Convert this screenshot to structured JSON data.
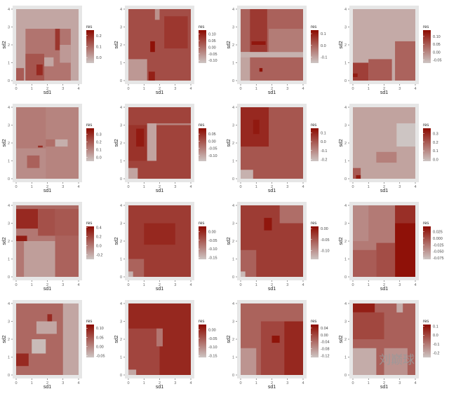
{
  "chart_data": {
    "type": "heatmap",
    "layout": "4x4 grid",
    "xlabel": "sd1",
    "ylabel": "sd2",
    "legend_title": "res",
    "legend_placement": "right",
    "xlim": [
      0,
      4
    ],
    "ylim": [
      0,
      4
    ],
    "xticks": [
      0,
      1,
      2,
      3,
      4
    ],
    "yticks": [
      0,
      1,
      2,
      3,
      4
    ],
    "colors": {
      "low": "#cdc5c3",
      "high": "#8c0a00",
      "panel_bg": "#e6e6e6"
    },
    "panels": [
      {
        "range": [
          -0.05,
          0.25
        ],
        "ticks": [
          "0.2",
          "0.1",
          "0.0"
        ],
        "tickvals": [
          0.2,
          0.1,
          0.0
        ],
        "base": 0.0,
        "blocks": [
          [
            0.6,
            3.5,
            0,
            2.9,
            0.08
          ],
          [
            0,
            0.5,
            0,
            0.7,
            0.12
          ],
          [
            0.6,
            1.8,
            0,
            1.5,
            0.13
          ],
          [
            1.3,
            1.7,
            0.3,
            0.9,
            0.2
          ],
          [
            2.5,
            2.8,
            1.7,
            2.9,
            0.18
          ],
          [
            1.8,
            2.4,
            0.8,
            1.3,
            0.0
          ],
          [
            2.8,
            3.5,
            1.0,
            2.0,
            0.02
          ]
        ]
      },
      {
        "range": [
          -0.12,
          0.13
        ],
        "ticks": [
          "0.10",
          "0.05",
          "0.00",
          "-0.05",
          "-0.10"
        ],
        "tickvals": [
          0.1,
          0.05,
          0,
          -0.05,
          -0.1
        ],
        "base": 0.04,
        "blocks": [
          [
            1.7,
            2.0,
            3.4,
            4,
            -0.05
          ],
          [
            2.3,
            3.8,
            1.8,
            3.6,
            0.07
          ],
          [
            0,
            1.2,
            0,
            1.2,
            -0.06
          ],
          [
            1.4,
            1.7,
            1.6,
            2.2,
            0.12
          ],
          [
            1.3,
            1.7,
            0,
            0.5,
            0.1
          ]
        ]
      },
      {
        "range": [
          -0.15,
          0.13
        ],
        "ticks": [
          "0.1",
          "0.0",
          "-0.1"
        ],
        "tickvals": [
          0.1,
          0,
          -0.1
        ],
        "base": 0.0,
        "blocks": [
          [
            0.6,
            1.7,
            1.6,
            4,
            0.06
          ],
          [
            0.7,
            1.6,
            2.0,
            2.2,
            0.11
          ],
          [
            1.8,
            4,
            1.6,
            2.9,
            -0.04
          ],
          [
            0,
            0.6,
            0,
            1.6,
            -0.1
          ],
          [
            0,
            4,
            1.3,
            1.6,
            -0.12
          ],
          [
            1.2,
            1.4,
            0.5,
            0.7,
            0.12
          ]
        ]
      },
      {
        "range": [
          -0.07,
          0.14
        ],
        "ticks": [
          "0.10",
          "0.05",
          "0.00",
          "-0.05"
        ],
        "tickvals": [
          0.1,
          0.05,
          0,
          -0.05
        ],
        "base": -0.04,
        "blocks": [
          [
            0,
            1.0,
            0,
            1.0,
            0.08
          ],
          [
            1.0,
            2.5,
            0,
            1.2,
            0.05
          ],
          [
            2.7,
            4,
            0,
            2.2,
            0.04
          ],
          [
            0,
            0.3,
            0.2,
            0.4,
            0.12
          ]
        ]
      },
      {
        "range": [
          -0.05,
          0.38
        ],
        "ticks": [
          "0.3",
          "0.2",
          "0.1",
          "0.0"
        ],
        "tickvals": [
          0.3,
          0.2,
          0.1,
          0
        ],
        "base": 0.1,
        "blocks": [
          [
            0,
            1.9,
            1.7,
            4,
            0.12
          ],
          [
            1.9,
            2.5,
            1.8,
            2.2,
            0.15
          ],
          [
            2.5,
            3.3,
            1.8,
            2.2,
            0.0
          ],
          [
            0,
            1.9,
            0,
            1.7,
            0.08
          ],
          [
            0.7,
            1.5,
            0.6,
            1.3,
            0.18
          ],
          [
            1.4,
            1.7,
            1.75,
            1.85,
            0.3
          ]
        ]
      },
      {
        "range": [
          -0.14,
          0.09
        ],
        "ticks": [
          "0.05",
          "0.00",
          "-0.05",
          "-0.10"
        ],
        "tickvals": [
          0.05,
          0,
          -0.05,
          -0.1
        ],
        "base": 0.02,
        "blocks": [
          [
            0,
            1.2,
            1.0,
            3.0,
            0.04
          ],
          [
            1.2,
            1.8,
            1.0,
            3.1,
            -0.1
          ],
          [
            1.8,
            4,
            3.0,
            3.1,
            -0.06
          ],
          [
            0.5,
            1.0,
            1.8,
            2.8,
            0.07
          ],
          [
            0,
            0.6,
            0,
            0.6,
            -0.1
          ]
        ]
      },
      {
        "range": [
          -0.22,
          0.15
        ],
        "ticks": [
          "0.1",
          "0.0",
          "-0.1",
          "-0.2"
        ],
        "tickvals": [
          0.1,
          0,
          -0.1,
          -0.2
        ],
        "base": 0.0,
        "blocks": [
          [
            0,
            1.8,
            1.8,
            4,
            0.09
          ],
          [
            0.8,
            1.2,
            2.5,
            3.3,
            0.12
          ],
          [
            0,
            0.8,
            0,
            0.5,
            -0.18
          ]
        ]
      },
      {
        "range": [
          -0.02,
          0.36
        ],
        "ticks": [
          "0.3",
          "0.2",
          "0.1",
          "0.0"
        ],
        "tickvals": [
          0.3,
          0.2,
          0.1,
          0
        ],
        "base": 0.05,
        "blocks": [
          [
            2.8,
            4,
            1.8,
            3.1,
            -0.02
          ],
          [
            1.5,
            2.8,
            0.9,
            1.5,
            0.12
          ],
          [
            0,
            0.5,
            0,
            0.6,
            0.2
          ],
          [
            0.2,
            0.5,
            0,
            0.2,
            0.33
          ]
        ]
      },
      {
        "range": [
          -0.3,
          0.42
        ],
        "ticks": [
          "0.4",
          "0.2",
          "0.0",
          "-0.2"
        ],
        "tickvals": [
          0.4,
          0.2,
          0,
          -0.2
        ],
        "base": 0.0,
        "blocks": [
          [
            0,
            1.4,
            2.7,
            3.8,
            0.3
          ],
          [
            1.4,
            2.5,
            2.3,
            4,
            0.15
          ],
          [
            2.5,
            4,
            2.3,
            3.8,
            0.12
          ],
          [
            0,
            0.7,
            2.0,
            2.3,
            0.35
          ],
          [
            0,
            4,
            3.8,
            4,
            0.05
          ],
          [
            0.5,
            2.5,
            0,
            2,
            -0.15
          ],
          [
            2.5,
            4,
            0,
            2.3,
            0.08
          ]
        ]
      },
      {
        "range": [
          -0.16,
          0.03
        ],
        "ticks": [
          "0.00",
          "-0.05",
          "-0.10",
          "-0.15"
        ],
        "tickvals": [
          0,
          -0.05,
          -0.1,
          -0.15
        ],
        "base": -0.02,
        "blocks": [
          [
            1.0,
            3.0,
            1.8,
            3.0,
            0.0
          ],
          [
            0,
            1,
            0,
            1,
            -0.06
          ],
          [
            0,
            0.3,
            0,
            0.3,
            -0.14
          ]
        ]
      },
      {
        "range": [
          -0.14,
          0.01
        ],
        "ticks": [
          "0.00",
          "-0.05",
          "-0.10"
        ],
        "tickvals": [
          0,
          -0.05,
          -0.1
        ],
        "base": -0.03,
        "blocks": [
          [
            2.5,
            4,
            3.0,
            4,
            -0.07
          ],
          [
            0,
            1.0,
            0,
            1.5,
            -0.06
          ],
          [
            1.5,
            2.0,
            2.6,
            3.3,
            0.0
          ],
          [
            0,
            0.3,
            0,
            0.3,
            -0.13
          ]
        ]
      },
      {
        "range": [
          -0.08,
          0.045
        ],
        "ticks": [
          "0.025",
          "0.000",
          "-0.025",
          "-0.050",
          "-0.075"
        ],
        "tickvals": [
          0.025,
          0,
          -0.025,
          -0.05,
          -0.075
        ],
        "base": -0.03,
        "blocks": [
          [
            2.7,
            4,
            0,
            3.0,
            0.04
          ],
          [
            2.7,
            4,
            3.0,
            4,
            0.02
          ],
          [
            1.5,
            2.7,
            0,
            1.9,
            0.0
          ],
          [
            0,
            1.5,
            0,
            1.5,
            -0.01
          ],
          [
            0,
            1,
            2,
            4,
            -0.04
          ]
        ]
      },
      {
        "range": [
          -0.06,
          0.12
        ],
        "ticks": [
          "0.10",
          "0.05",
          "0.00",
          "-0.05"
        ],
        "tickvals": [
          0.1,
          0.05,
          0,
          -0.05
        ],
        "base": 0.03,
        "blocks": [
          [
            1.3,
            2.6,
            2.3,
            3.0,
            -0.03
          ],
          [
            1.0,
            1.9,
            1.2,
            2.0,
            -0.05
          ],
          [
            3.0,
            4,
            0,
            4,
            -0.03
          ],
          [
            0,
            0.8,
            0.5,
            1.2,
            0.09
          ],
          [
            2.0,
            2.3,
            3.0,
            3.4,
            0.09
          ]
        ]
      },
      {
        "range": [
          -0.16,
          0.03
        ],
        "ticks": [
          "0.00",
          "-0.05",
          "-0.10",
          "-0.15"
        ],
        "tickvals": [
          0,
          -0.05,
          -0.1,
          -0.15
        ],
        "base": 0.0,
        "blocks": [
          [
            0,
            2.0,
            0,
            2.6,
            -0.03
          ],
          [
            1.8,
            2.2,
            1.6,
            2.6,
            -0.08
          ],
          [
            0,
            0.5,
            0,
            0.3,
            -0.13
          ]
        ]
      },
      {
        "range": [
          -0.13,
          0.06
        ],
        "ticks": [
          "0.04",
          "0.00",
          "-0.04",
          "-0.08",
          "-0.12"
        ],
        "tickvals": [
          0.04,
          0,
          -0.04,
          -0.08,
          -0.12
        ],
        "base": -0.03,
        "blocks": [
          [
            1.3,
            4,
            0,
            3.0,
            0.0
          ],
          [
            2.8,
            4,
            0,
            3.0,
            0.03
          ],
          [
            2.0,
            2.5,
            1.8,
            2.2,
            0.05
          ],
          [
            0,
            1.0,
            0,
            1.5,
            -0.08
          ]
        ]
      },
      {
        "range": [
          -0.25,
          0.12
        ],
        "ticks": [
          "0.1",
          "0.0",
          "-0.1",
          "-0.2"
        ],
        "tickvals": [
          0.1,
          0,
          -0.1,
          -0.2
        ],
        "base": -0.05,
        "blocks": [
          [
            0,
            1.4,
            3.5,
            4,
            0.08
          ],
          [
            0,
            2,
            2,
            3.5,
            0.0
          ],
          [
            0,
            1.5,
            0,
            1.5,
            -0.2
          ],
          [
            2.8,
            3.2,
            3.5,
            4,
            -0.2
          ],
          [
            2.0,
            3.5,
            0,
            1.5,
            -0.15
          ]
        ]
      }
    ]
  },
  "watermark": "刘巅球"
}
